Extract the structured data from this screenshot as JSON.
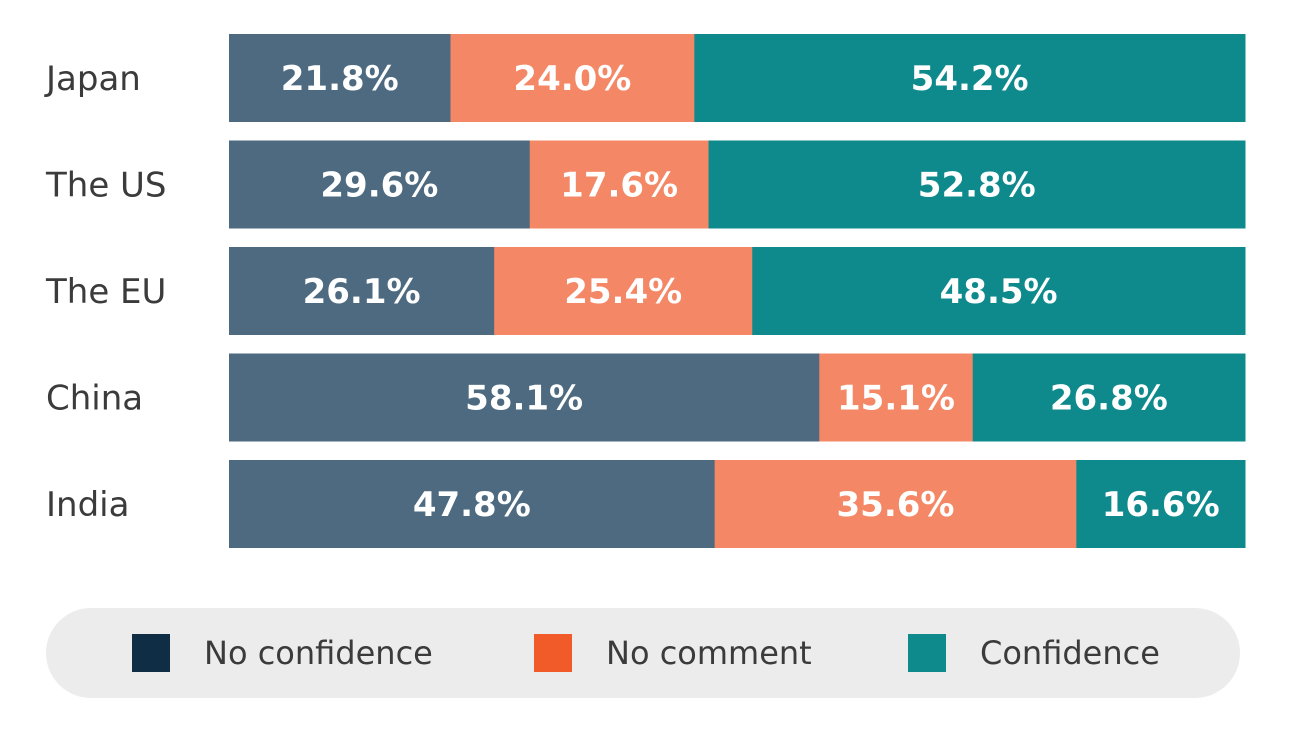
{
  "chart_data": {
    "type": "bar",
    "orientation": "horizontal",
    "stacked": true,
    "categories": [
      "Japan",
      "The US",
      "The EU",
      "China",
      "India"
    ],
    "series": [
      {
        "name": "No confidence",
        "color": "#4d6a80",
        "legend_color": "#0f2d45",
        "values": [
          21.8,
          29.6,
          26.1,
          58.1,
          47.8
        ],
        "labels": [
          "21.8%",
          "29.6%",
          "26.1%",
          "58.1%",
          "47.8%"
        ]
      },
      {
        "name": "No comment",
        "color": "#f48866",
        "legend_color": "#f15a29",
        "values": [
          24.0,
          17.6,
          25.4,
          15.1,
          35.6
        ],
        "labels": [
          "24.0%",
          "17.6%",
          "25.4%",
          "15.1%",
          "35.6%"
        ]
      },
      {
        "name": "Confidence",
        "color": "#0f8a8c",
        "legend_color": "#0f8a8c",
        "values": [
          54.2,
          52.8,
          48.5,
          26.8,
          16.6
        ],
        "labels": [
          "54.2%",
          "52.8%",
          "48.5%",
          "26.8%",
          "16.6%"
        ]
      }
    ],
    "xlim": [
      0,
      100
    ],
    "legend": "bottom"
  }
}
